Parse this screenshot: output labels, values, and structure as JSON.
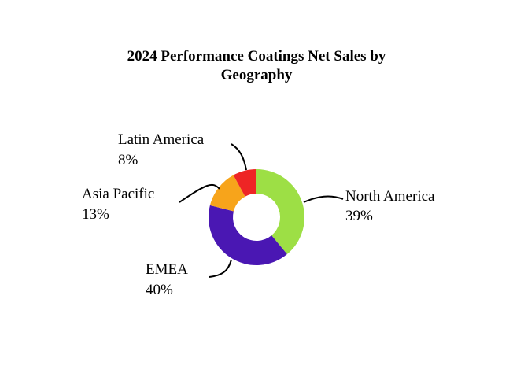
{
  "chart_data": {
    "type": "pie",
    "style": "donut",
    "title": [
      "2024 Performance Coatings Net Sales by",
      "Geography"
    ],
    "slices": [
      {
        "label": "North America",
        "value": 39,
        "value_label": "39%",
        "color": "#9ddf45"
      },
      {
        "label": "EMEA",
        "value": 40,
        "value_label": "40%",
        "color": "#4a17b3"
      },
      {
        "label": "Asia Pacific",
        "value": 13,
        "value_label": "13%",
        "color": "#f7a41b"
      },
      {
        "label": "Latin America",
        "value": 8,
        "value_label": "8%",
        "color": "#ee2525"
      }
    ],
    "legend": "none"
  }
}
